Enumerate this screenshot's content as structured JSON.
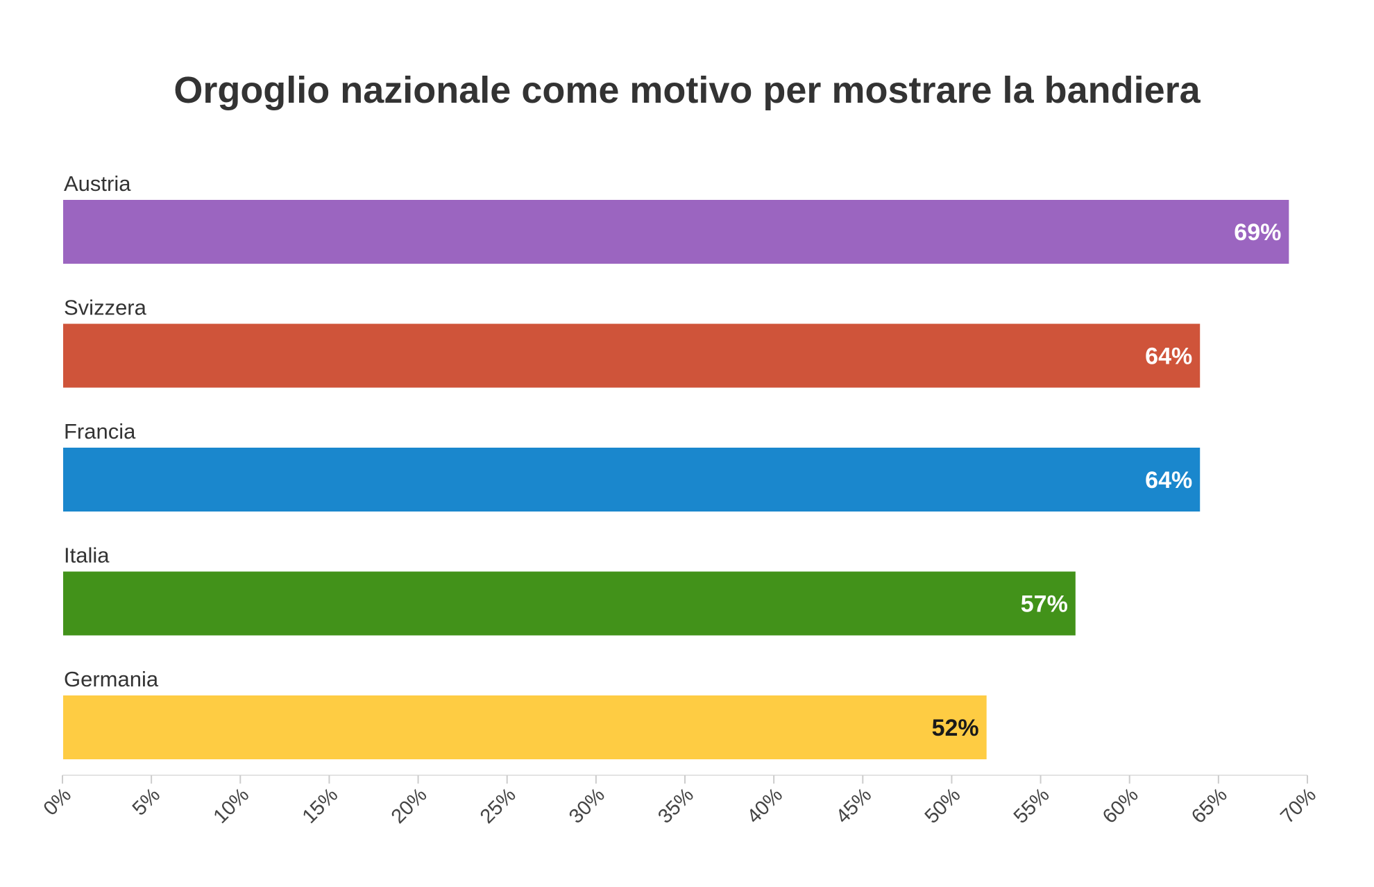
{
  "chart_data": {
    "type": "bar",
    "orientation": "horizontal",
    "title": "Orgoglio nazionale come motivo per mostrare la bandiera",
    "categories": [
      "Austria",
      "Svizzera",
      "Francia",
      "Italia",
      "Germania"
    ],
    "values": [
      69,
      64,
      64,
      57,
      52
    ],
    "value_labels": [
      "69%",
      "64%",
      "64%",
      "57%",
      "52%"
    ],
    "colors": [
      "#9b65c0",
      "#cf543a",
      "#1a87cd",
      "#42921a",
      "#fecc43"
    ],
    "value_label_colors": [
      "#ffffff",
      "#ffffff",
      "#ffffff",
      "#ffffff",
      "#1a1a1a"
    ],
    "xlim": [
      0,
      70
    ],
    "x_ticks": [
      0,
      5,
      10,
      15,
      20,
      25,
      30,
      35,
      40,
      45,
      50,
      55,
      60,
      65,
      70
    ],
    "x_tick_labels": [
      "0%",
      "5%",
      "10%",
      "15%",
      "20%",
      "25%",
      "30%",
      "35%",
      "40%",
      "45%",
      "50%",
      "55%",
      "60%",
      "65%",
      "70%"
    ],
    "grid": false,
    "legend": "none"
  }
}
